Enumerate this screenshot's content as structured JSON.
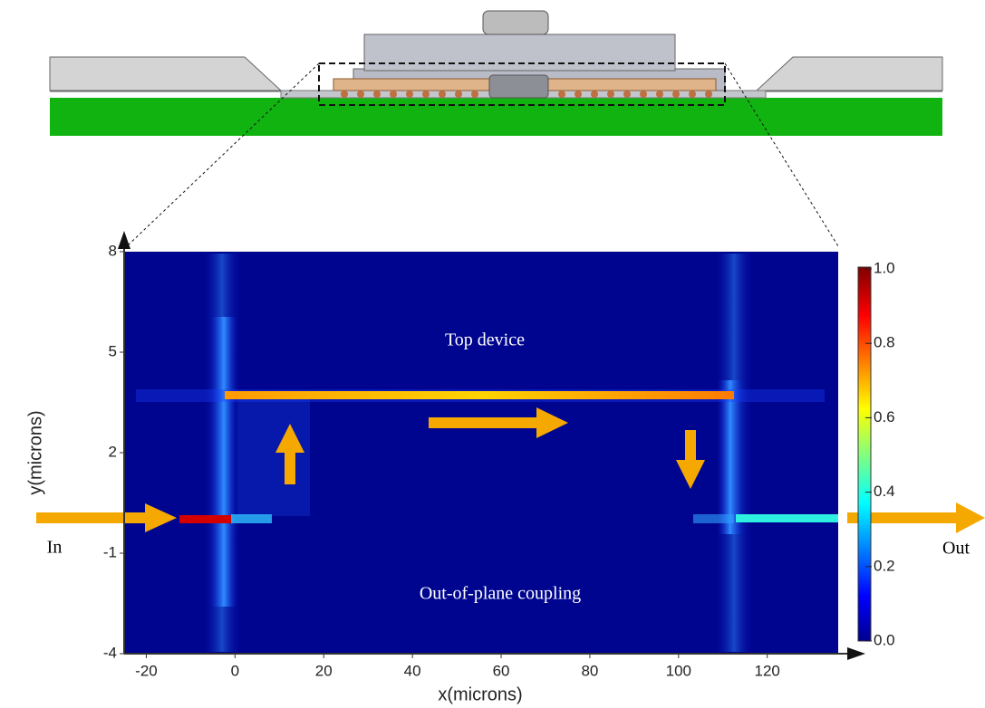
{
  "chart_data": {
    "type": "field-map",
    "xlabel": "x(microns)",
    "ylabel": "y(microns)",
    "xlim": [
      -25,
      136
    ],
    "xticks": [
      -20,
      0,
      20,
      40,
      60,
      80,
      100,
      120
    ],
    "ylim": [
      -4,
      8
    ],
    "yticks": [
      -4,
      -1,
      2,
      5,
      8
    ],
    "colorbar": {
      "lim": [
        0,
        1
      ],
      "ticks": [
        {
          "value": 0,
          "label": "0.0"
        },
        {
          "value": 0.2,
          "label": "0.2"
        },
        {
          "value": 0.4,
          "label": "0.4"
        },
        {
          "value": 0.6,
          "label": "0.6"
        },
        {
          "value": 0.8,
          "label": "0.8"
        },
        {
          "value": 1,
          "label": "1.0"
        }
      ]
    },
    "annotations": [
      "Top device",
      "Out-of-plane coupling",
      "In",
      "Out"
    ]
  }
}
